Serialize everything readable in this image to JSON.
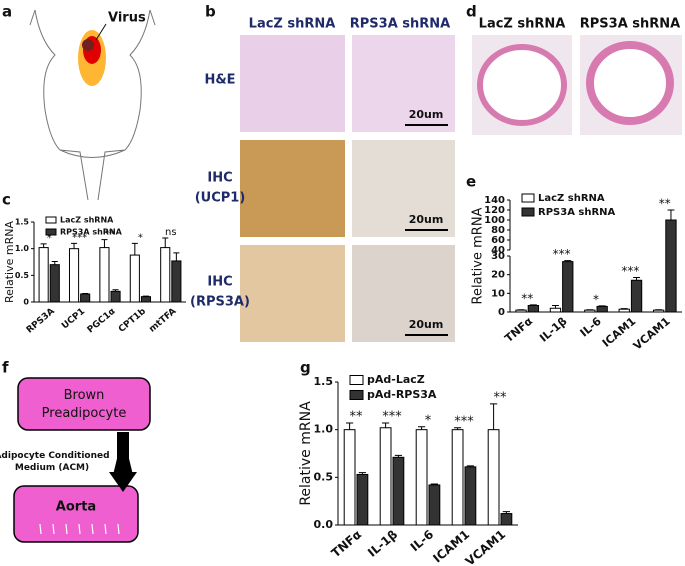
{
  "panels": {
    "a": {
      "label": "a",
      "annotation": "Virus"
    },
    "b": {
      "label": "b",
      "columns": [
        "LacZ shRNA",
        "RPS3A shRNA"
      ],
      "rows": [
        [
          "H&E"
        ],
        [
          "IHC",
          "(UCP1)"
        ],
        [
          "IHC",
          "(RPS3A)"
        ]
      ],
      "scale_bar": "20um"
    },
    "c": {
      "label": "c"
    },
    "d": {
      "label": "d",
      "columns": [
        "LacZ shRNA",
        "RPS3A shRNA"
      ]
    },
    "e": {
      "label": "e"
    },
    "f": {
      "label": "f",
      "source": "Brown Preadipocyte",
      "arrow_label": "Adipocyte Conditioned Medium (ACM)",
      "target": "Aorta"
    },
    "g": {
      "label": "g"
    }
  },
  "chart_data": [
    {
      "type": "bar",
      "y_label": "Relative mRNA",
      "categories": [
        "RPS3A",
        "UCP1",
        "PGC1α",
        "CPT1b",
        "mtTFA"
      ],
      "series": [
        {
          "name": "LacZ shRNA",
          "color": "#ffffff",
          "values": [
            1.02,
            1.0,
            1.02,
            0.88,
            1.02
          ],
          "errors": [
            0.07,
            0.1,
            0.15,
            0.22,
            0.18
          ]
        },
        {
          "name": "RPS3A shRNA",
          "color": "#333333",
          "values": [
            0.7,
            0.15,
            0.2,
            0.1,
            0.77
          ],
          "errors": [
            0.06,
            0.01,
            0.03,
            0.01,
            0.15
          ]
        }
      ],
      "annotations": [
        "*",
        "***",
        "**",
        "*",
        "ns"
      ],
      "ylim": [
        0,
        1.5
      ],
      "yticks": [
        0,
        0.5,
        {
          "value": 1,
          "label": "1.0"
        },
        1.5
      ],
      "legend": "upper left"
    },
    {
      "type": "bar",
      "y_label": "Relative mRNA",
      "categories": [
        "TNFα",
        "IL-1β",
        "IL-6",
        "ICAM1",
        "VCAM1"
      ],
      "series": [
        {
          "name": "LacZ shRNA",
          "color": "#ffffff",
          "values": [
            1,
            2,
            1,
            1.5,
            1
          ],
          "errors": [
            0.2,
            1.5,
            0.2,
            0.3,
            0.2
          ]
        },
        {
          "name": "RPS3A shRNA",
          "color": "#333333",
          "values": [
            3.5,
            27,
            3,
            17,
            100
          ],
          "errors": [
            0.3,
            0.5,
            0.3,
            1.5,
            20
          ]
        }
      ],
      "annotations": [
        "**",
        "***",
        "*",
        "***",
        "**"
      ],
      "ylim": [
        0,
        140
      ],
      "axis_break": [
        30,
        40
      ],
      "yticks": [
        0,
        10,
        20,
        30,
        40,
        60,
        80,
        100,
        120,
        140
      ],
      "legend": "upper left"
    },
    {
      "type": "bar",
      "y_label": "Relative mRNA",
      "categories": [
        "TNFα",
        "IL-1β",
        "IL-6",
        "ICAM1",
        "VCAM1"
      ],
      "series": [
        {
          "name": "pAd-LacZ",
          "color": "#ffffff",
          "values": [
            1.0,
            1.02,
            1.0,
            1.0,
            1.0
          ],
          "errors": [
            0.07,
            0.05,
            0.03,
            0.02,
            0.27
          ]
        },
        {
          "name": "pAd-RPS3A",
          "color": "#333333",
          "values": [
            0.53,
            0.71,
            0.42,
            0.61,
            0.12
          ],
          "errors": [
            0.02,
            0.02,
            0.01,
            0.01,
            0.02
          ]
        }
      ],
      "annotations": [
        "**",
        "***",
        "*",
        "***",
        "**"
      ],
      "ylim": [
        0,
        1.5
      ],
      "yticks": [
        {
          "value": 0,
          "label": "0.0"
        },
        0.5,
        {
          "value": 1,
          "label": "1.0"
        },
        1.5
      ],
      "legend": "upper left"
    }
  ]
}
